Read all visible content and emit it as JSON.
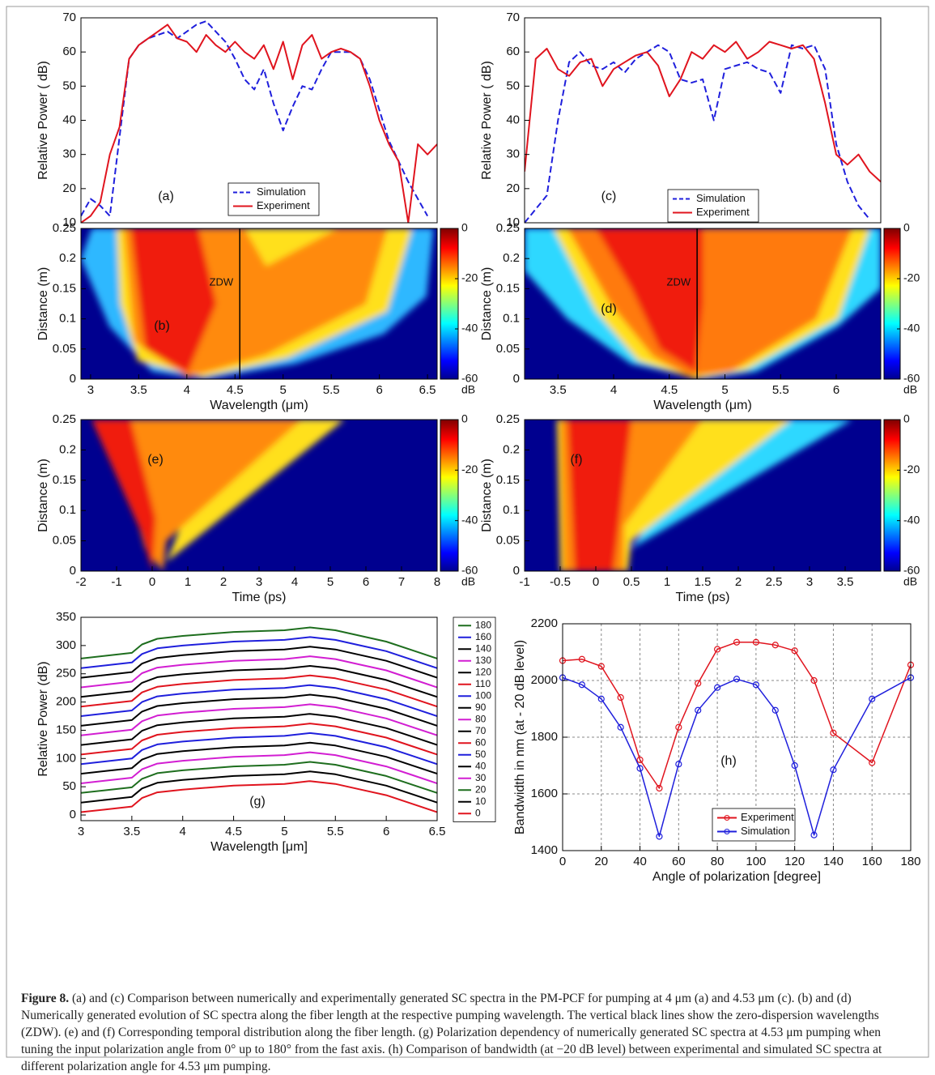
{
  "chart_data": [
    {
      "type": "line",
      "panel_label": "(a)",
      "ylabel": "Relative Power ( dB)",
      "xlim": [
        2.9,
        6.6
      ],
      "ylim": [
        10,
        70
      ],
      "yticks": [
        10,
        20,
        30,
        40,
        50,
        60,
        70
      ],
      "x": [
        2.9,
        3.0,
        3.1,
        3.2,
        3.3,
        3.4,
        3.5,
        3.6,
        3.7,
        3.8,
        3.9,
        4.0,
        4.1,
        4.2,
        4.3,
        4.4,
        4.5,
        4.6,
        4.7,
        4.8,
        4.9,
        5.0,
        5.1,
        5.2,
        5.3,
        5.4,
        5.5,
        5.6,
        5.7,
        5.8,
        5.9,
        6.0,
        6.1,
        6.2,
        6.3,
        6.4,
        6.5,
        6.6
      ],
      "series": [
        {
          "name": "Simulation",
          "color": "#1f1fdc",
          "linestyle": "dashed",
          "values": [
            12,
            17,
            15,
            12,
            35,
            58,
            62,
            64,
            65,
            66,
            64,
            66,
            68,
            69,
            66,
            63,
            58,
            52,
            49,
            55,
            45,
            37,
            44,
            50,
            49,
            55,
            60,
            60,
            60,
            58,
            52,
            43,
            34,
            28,
            22,
            17,
            12,
            null
          ]
        },
        {
          "name": "Experiment",
          "color": "#e0141e",
          "linestyle": "solid",
          "values": [
            10,
            12,
            16,
            30,
            38,
            58,
            62,
            64,
            66,
            68,
            64,
            63,
            60,
            65,
            62,
            60,
            63,
            60,
            58,
            62,
            55,
            63,
            52,
            62,
            65,
            58,
            60,
            61,
            60,
            58,
            50,
            40,
            33,
            28,
            10,
            33,
            30,
            33
          ]
        }
      ]
    },
    {
      "type": "heatmap",
      "panel_label": "(b)",
      "xlabel": "Wavelength (μm)",
      "ylabel": "Distance (m)",
      "xlim": [
        2.9,
        6.6
      ],
      "xticks": [
        3,
        3.5,
        4,
        4.5,
        5,
        5.5,
        6,
        6.5
      ],
      "ylim": [
        0,
        0.25
      ],
      "yticks": [
        0,
        0.05,
        0.1,
        0.15,
        0.2,
        0.25
      ],
      "zdw": 4.55,
      "zdw_label": "ZDW",
      "clim": [
        -60,
        0
      ],
      "colorbar_ticks": [
        0,
        -20,
        -40,
        -60
      ],
      "colorbar_unit": "dB"
    },
    {
      "type": "line",
      "panel_label": "(c)",
      "ylabel": "Relative Power ( dB)",
      "xlim": [
        3.2,
        6.4
      ],
      "ylim": [
        10,
        70
      ],
      "yticks": [
        10,
        20,
        30,
        40,
        50,
        60,
        70
      ],
      "x": [
        3.2,
        3.3,
        3.4,
        3.5,
        3.6,
        3.7,
        3.8,
        3.9,
        4.0,
        4.1,
        4.2,
        4.3,
        4.4,
        4.5,
        4.6,
        4.7,
        4.8,
        4.9,
        5.0,
        5.1,
        5.2,
        5.3,
        5.4,
        5.5,
        5.6,
        5.7,
        5.8,
        5.9,
        6.0,
        6.1,
        6.2,
        6.3,
        6.4
      ],
      "series": [
        {
          "name": "Simulation",
          "color": "#1f1fdc",
          "linestyle": "dashed",
          "values": [
            10,
            14,
            18,
            40,
            57,
            60,
            56,
            55,
            57,
            54,
            58,
            60,
            62,
            60,
            52,
            51,
            52,
            40,
            55,
            56,
            57,
            55,
            54,
            48,
            62,
            61,
            62,
            55,
            33,
            22,
            15,
            11,
            null
          ]
        },
        {
          "name": "Experiment",
          "color": "#e0141e",
          "linestyle": "solid",
          "values": [
            25,
            58,
            61,
            55,
            53,
            57,
            58,
            50,
            55,
            57,
            59,
            60,
            56,
            47,
            52,
            60,
            58,
            62,
            60,
            63,
            58,
            60,
            63,
            62,
            61,
            62,
            58,
            45,
            30,
            27,
            30,
            25,
            22
          ]
        }
      ]
    },
    {
      "type": "heatmap",
      "panel_label": "(d)",
      "xlabel": "Wavelength (μm)",
      "ylabel": "Distance (m)",
      "xlim": [
        3.2,
        6.4
      ],
      "xticks": [
        3.5,
        4,
        4.5,
        5,
        5.5,
        6
      ],
      "ylim": [
        0,
        0.25
      ],
      "yticks": [
        0,
        0.05,
        0.1,
        0.15,
        0.2,
        0.25
      ],
      "zdw": 4.75,
      "zdw_label": "ZDW",
      "clim": [
        -60,
        0
      ],
      "colorbar_ticks": [
        0,
        -20,
        -40,
        -60
      ],
      "colorbar_unit": "dB"
    },
    {
      "type": "heatmap",
      "panel_label": "(e)",
      "xlabel": "Time (ps)",
      "ylabel": "Distance (m)",
      "xlim": [
        -2,
        8
      ],
      "xticks": [
        -2,
        -1,
        0,
        1,
        2,
        3,
        4,
        5,
        6,
        7,
        8
      ],
      "ylim": [
        0,
        0.25
      ],
      "yticks": [
        0,
        0.05,
        0.1,
        0.15,
        0.2,
        0.25
      ],
      "clim": [
        -60,
        0
      ],
      "colorbar_ticks": [
        0,
        -20,
        -40,
        -60
      ],
      "colorbar_unit": "dB"
    },
    {
      "type": "heatmap",
      "panel_label": "(f)",
      "xlabel": "Time (ps)",
      "ylabel": "Distance (m)",
      "xlim": [
        -1,
        4
      ],
      "xticks": [
        -1,
        -0.5,
        0,
        0.5,
        1,
        1.5,
        2,
        2.5,
        3,
        3.5
      ],
      "ylim": [
        0,
        0.25
      ],
      "yticks": [
        0,
        0.05,
        0.1,
        0.15,
        0.2,
        0.25
      ],
      "clim": [
        -60,
        0
      ],
      "colorbar_ticks": [
        0,
        -20,
        -40,
        -60
      ],
      "colorbar_unit": "dB"
    },
    {
      "type": "line",
      "panel_label": "(g)",
      "xlabel": "Wavelength [μm]",
      "ylabel": "Relative Power (dB)",
      "xlim": [
        3,
        6.5
      ],
      "xticks": [
        3,
        3.5,
        4,
        4.5,
        5,
        5.5,
        6,
        6.5
      ],
      "ylim": [
        -10,
        350
      ],
      "yticks": [
        0,
        50,
        100,
        150,
        200,
        250,
        300,
        350
      ],
      "x": [
        3,
        3.25,
        3.5,
        3.6,
        3.75,
        4,
        4.5,
        5,
        5.25,
        5.5,
        5.75,
        6,
        6.25,
        6.5
      ],
      "series": [
        {
          "name": "180",
          "color": "#1e6e1e",
          "values": [
            277,
            282,
            287,
            302,
            312,
            317,
            324,
            327,
            332,
            327,
            317,
            307,
            292,
            277
          ]
        },
        {
          "name": "160",
          "color": "#1f1fdc",
          "values": [
            260,
            265,
            270,
            285,
            295,
            300,
            307,
            310,
            315,
            310,
            300,
            290,
            275,
            260
          ]
        },
        {
          "name": "140",
          "color": "#000000",
          "values": [
            243,
            248,
            253,
            268,
            278,
            283,
            290,
            293,
            298,
            293,
            283,
            273,
            258,
            243
          ]
        },
        {
          "name": "130",
          "color": "#d21ed2",
          "values": [
            226,
            231,
            236,
            251,
            261,
            266,
            273,
            276,
            281,
            276,
            266,
            256,
            241,
            226
          ]
        },
        {
          "name": "120",
          "color": "#000000",
          "values": [
            209,
            214,
            219,
            234,
            244,
            249,
            256,
            259,
            264,
            259,
            249,
            239,
            224,
            209
          ]
        },
        {
          "name": "110",
          "color": "#e0141e",
          "values": [
            192,
            197,
            202,
            217,
            227,
            232,
            239,
            242,
            247,
            242,
            232,
            222,
            207,
            192
          ]
        },
        {
          "name": "100",
          "color": "#1f1fdc",
          "values": [
            175,
            180,
            185,
            200,
            210,
            215,
            222,
            225,
            230,
            225,
            215,
            205,
            190,
            175
          ]
        },
        {
          "name": "90",
          "color": "#000000",
          "values": [
            158,
            163,
            168,
            183,
            193,
            198,
            205,
            208,
            213,
            208,
            198,
            188,
            173,
            158
          ]
        },
        {
          "name": "80",
          "color": "#d21ed2",
          "values": [
            141,
            146,
            151,
            166,
            176,
            181,
            188,
            191,
            196,
            191,
            181,
            171,
            156,
            141
          ]
        },
        {
          "name": "70",
          "color": "#000000",
          "values": [
            124,
            129,
            134,
            149,
            159,
            164,
            171,
            174,
            179,
            174,
            164,
            154,
            139,
            124
          ]
        },
        {
          "name": "60",
          "color": "#e0141e",
          "values": [
            107,
            112,
            117,
            132,
            142,
            147,
            154,
            157,
            162,
            157,
            147,
            137,
            122,
            107
          ]
        },
        {
          "name": "50",
          "color": "#1f1fdc",
          "values": [
            90,
            95,
            100,
            115,
            125,
            130,
            137,
            140,
            145,
            140,
            130,
            120,
            105,
            90
          ]
        },
        {
          "name": "40",
          "color": "#000000",
          "values": [
            73,
            78,
            83,
            98,
            108,
            113,
            120,
            123,
            128,
            123,
            113,
            103,
            88,
            73
          ]
        },
        {
          "name": "30",
          "color": "#d21ed2",
          "values": [
            56,
            61,
            66,
            81,
            91,
            96,
            103,
            106,
            111,
            106,
            96,
            86,
            71,
            56
          ]
        },
        {
          "name": "20",
          "color": "#1e6e1e",
          "values": [
            39,
            44,
            49,
            64,
            74,
            79,
            86,
            89,
            94,
            89,
            79,
            69,
            54,
            39
          ]
        },
        {
          "name": "10",
          "color": "#000000",
          "values": [
            22,
            27,
            32,
            47,
            57,
            62,
            69,
            72,
            77,
            72,
            62,
            52,
            37,
            22
          ]
        },
        {
          "name": "0",
          "color": "#e0141e",
          "values": [
            5,
            10,
            15,
            30,
            40,
            45,
            52,
            55,
            60,
            55,
            45,
            35,
            20,
            5
          ]
        }
      ]
    },
    {
      "type": "line",
      "panel_label": "(h)",
      "xlabel": "Angle of polarization [degree]",
      "ylabel": "Bandwidth in nm (at - 20 dB level)",
      "xlim": [
        0,
        180
      ],
      "xticks": [
        0,
        20,
        40,
        60,
        80,
        100,
        120,
        140,
        160,
        180
      ],
      "ylim": [
        1400,
        2200
      ],
      "yticks": [
        1400,
        1600,
        1800,
        2000,
        2200
      ],
      "grid": true,
      "markers": true,
      "x": [
        0,
        10,
        20,
        30,
        40,
        50,
        60,
        70,
        80,
        90,
        100,
        110,
        120,
        130,
        140,
        160,
        180
      ],
      "series": [
        {
          "name": "Experiment",
          "color": "#e0141e",
          "values": [
            2070,
            2075,
            2050,
            1940,
            1720,
            1620,
            1835,
            1990,
            2110,
            2135,
            2135,
            2125,
            2105,
            2000,
            1815,
            1710,
            2055
          ]
        },
        {
          "name": "Simulation",
          "color": "#1f1fdc",
          "values": [
            2010,
            1985,
            1935,
            1835,
            1690,
            1450,
            1705,
            1895,
            1975,
            2005,
            1985,
            1895,
            1700,
            1455,
            1685,
            1935,
            2010
          ]
        }
      ]
    }
  ],
  "caption": {
    "label": "Figure 8.",
    "text": "(a) and (c) Comparison between numerically and experimentally generated SC spectra in the PM-PCF for pumping at 4 μm (a) and 4.53 μm (c). (b) and (d) Numerically generated evolution of SC spectra along the fiber length at the respective pumping wavelength. The vertical black lines show the zero-dispersion wavelengths (ZDW). (e) and (f) Corresponding temporal distribution along the fiber length. (g) Polarization dependency of numerically generated SC spectra at 4.53 μm pumping when tuning the input polarization angle from 0° up to 180° from the fast axis. (h) Comparison of bandwidth (at −20 dB level) between experimental and simulated SC spectra at different polarization angle for 4.53 μm pumping."
  }
}
